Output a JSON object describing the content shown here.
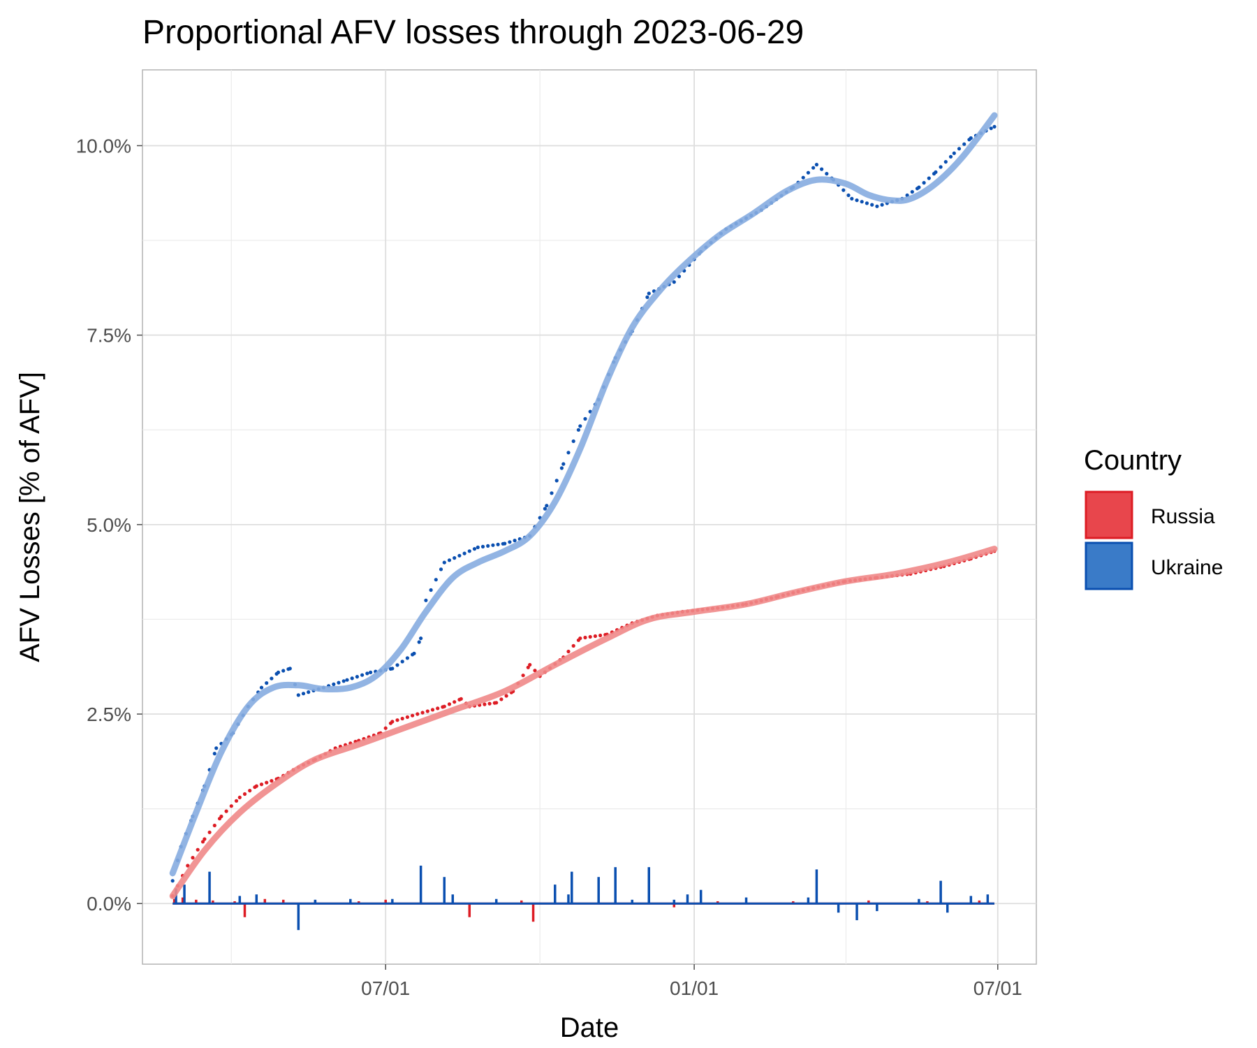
{
  "chart_data": {
    "type": "line",
    "title": "Proportional AFV losses through 2023-06-29",
    "xlabel": "Date",
    "ylabel": "AFV Losses [% of AFV]",
    "x_ticks": [
      {
        "date": "2022-07-01",
        "label": "07/01"
      },
      {
        "date": "2023-01-01",
        "label": "01/01"
      },
      {
        "date": "2023-07-01",
        "label": "07/01"
      }
    ],
    "y_ticks": [
      {
        "value": 0.0,
        "label": "0.0%"
      },
      {
        "value": 2.5,
        "label": "2.5%"
      },
      {
        "value": 5.0,
        "label": "5.0%"
      },
      {
        "value": 7.5,
        "label": "7.5%"
      },
      {
        "value": 10.0,
        "label": "10.0%"
      }
    ],
    "xlim": [
      "2022-02-06",
      "2023-07-24"
    ],
    "ylim": [
      -0.8,
      11.0
    ],
    "grid": true,
    "legend": {
      "title": "Country",
      "position": "right",
      "entries": [
        {
          "label": "Russia",
          "color": "#e8464c"
        },
        {
          "label": "Ukraine",
          "color": "#3a7bc8"
        }
      ]
    },
    "series": [
      {
        "name": "Russia",
        "color": "#dd1c24",
        "trend_color": "#f08888",
        "cumulative": [
          [
            "2022-02-24",
            0.1
          ],
          [
            "2022-03-05",
            0.5
          ],
          [
            "2022-03-15",
            0.85
          ],
          [
            "2022-03-25",
            1.15
          ],
          [
            "2022-04-05",
            1.4
          ],
          [
            "2022-04-15",
            1.55
          ],
          [
            "2022-04-28",
            1.65
          ],
          [
            "2022-05-10",
            1.8
          ],
          [
            "2022-05-20",
            1.9
          ],
          [
            "2022-06-01",
            2.05
          ],
          [
            "2022-06-15",
            2.15
          ],
          [
            "2022-06-28",
            2.25
          ],
          [
            "2022-07-05",
            2.4
          ],
          [
            "2022-07-20",
            2.5
          ],
          [
            "2022-08-05",
            2.6
          ],
          [
            "2022-08-15",
            2.7
          ],
          [
            "2022-08-20",
            2.6
          ],
          [
            "2022-09-05",
            2.65
          ],
          [
            "2022-09-15",
            2.8
          ],
          [
            "2022-09-25",
            3.15
          ],
          [
            "2022-10-01",
            3.0
          ],
          [
            "2022-10-15",
            3.25
          ],
          [
            "2022-10-25",
            3.5
          ],
          [
            "2022-11-10",
            3.55
          ],
          [
            "2022-11-25",
            3.7
          ],
          [
            "2022-12-10",
            3.8
          ],
          [
            "2022-12-25",
            3.85
          ],
          [
            "2023-01-15",
            3.9
          ],
          [
            "2023-02-01",
            3.95
          ],
          [
            "2023-02-20",
            4.05
          ],
          [
            "2023-03-10",
            4.15
          ],
          [
            "2023-04-01",
            4.25
          ],
          [
            "2023-04-20",
            4.3
          ],
          [
            "2023-05-10",
            4.35
          ],
          [
            "2023-05-30",
            4.45
          ],
          [
            "2023-06-15",
            4.55
          ],
          [
            "2023-06-29",
            4.65
          ]
        ],
        "trend": [
          [
            "2022-02-24",
            0.1
          ],
          [
            "2022-03-15",
            0.7
          ],
          [
            "2022-04-05",
            1.2
          ],
          [
            "2022-04-28",
            1.6
          ],
          [
            "2022-05-20",
            1.9
          ],
          [
            "2022-06-15",
            2.1
          ],
          [
            "2022-07-10",
            2.3
          ],
          [
            "2022-08-10",
            2.55
          ],
          [
            "2022-09-10",
            2.8
          ],
          [
            "2022-10-10",
            3.15
          ],
          [
            "2022-11-10",
            3.5
          ],
          [
            "2022-12-05",
            3.75
          ],
          [
            "2023-01-01",
            3.85
          ],
          [
            "2023-02-01",
            3.95
          ],
          [
            "2023-03-01",
            4.1
          ],
          [
            "2023-04-01",
            4.25
          ],
          [
            "2023-05-01",
            4.35
          ],
          [
            "2023-06-01",
            4.5
          ],
          [
            "2023-06-29",
            4.68
          ]
        ],
        "daily": [
          [
            "2022-02-25",
            0.06
          ],
          [
            "2022-03-02",
            0.08
          ],
          [
            "2022-03-10",
            0.05
          ],
          [
            "2022-03-20",
            0.04
          ],
          [
            "2022-04-02",
            0.03
          ],
          [
            "2022-04-08",
            -0.18
          ],
          [
            "2022-04-20",
            0.06
          ],
          [
            "2022-05-01",
            0.05
          ],
          [
            "2022-05-20",
            0.04
          ],
          [
            "2022-06-15",
            0.03
          ],
          [
            "2022-07-01",
            0.05
          ],
          [
            "2022-08-20",
            -0.18
          ],
          [
            "2022-09-20",
            0.04
          ],
          [
            "2022-09-27",
            -0.24
          ],
          [
            "2022-10-10",
            0.05
          ],
          [
            "2022-11-15",
            0.04
          ],
          [
            "2022-12-20",
            -0.05
          ],
          [
            "2023-01-15",
            0.03
          ],
          [
            "2023-03-01",
            0.03
          ],
          [
            "2023-04-15",
            0.04
          ],
          [
            "2023-05-20",
            0.03
          ],
          [
            "2023-06-20",
            0.04
          ]
        ]
      },
      {
        "name": "Ukraine",
        "color": "#0a4fb0",
        "trend_color": "#86ace0",
        "cumulative": [
          [
            "2022-02-24",
            0.3
          ],
          [
            "2022-03-01",
            0.75
          ],
          [
            "2022-03-08",
            1.15
          ],
          [
            "2022-03-15",
            1.55
          ],
          [
            "2022-03-22",
            2.05
          ],
          [
            "2022-04-01",
            2.25
          ],
          [
            "2022-04-10",
            2.6
          ],
          [
            "2022-04-18",
            2.85
          ],
          [
            "2022-04-28",
            3.05
          ],
          [
            "2022-05-05",
            3.1
          ],
          [
            "2022-05-10",
            2.75
          ],
          [
            "2022-05-25",
            2.85
          ],
          [
            "2022-06-08",
            2.95
          ],
          [
            "2022-06-22",
            3.05
          ],
          [
            "2022-07-05",
            3.1
          ],
          [
            "2022-07-18",
            3.3
          ],
          [
            "2022-07-22",
            3.5
          ],
          [
            "2022-07-25",
            4.0
          ],
          [
            "2022-08-05",
            4.5
          ],
          [
            "2022-08-25",
            4.7
          ],
          [
            "2022-09-10",
            4.75
          ],
          [
            "2022-09-25",
            4.85
          ],
          [
            "2022-10-05",
            5.25
          ],
          [
            "2022-10-15",
            5.8
          ],
          [
            "2022-10-25",
            6.3
          ],
          [
            "2022-11-05",
            6.65
          ],
          [
            "2022-11-15",
            7.2
          ],
          [
            "2022-11-25",
            7.55
          ],
          [
            "2022-12-05",
            8.05
          ],
          [
            "2022-12-20",
            8.2
          ],
          [
            "2023-01-05",
            8.6
          ],
          [
            "2023-01-20",
            8.9
          ],
          [
            "2023-02-10",
            9.15
          ],
          [
            "2023-03-01",
            9.45
          ],
          [
            "2023-03-15",
            9.75
          ],
          [
            "2023-03-25",
            9.55
          ],
          [
            "2023-04-05",
            9.3
          ],
          [
            "2023-04-20",
            9.2
          ],
          [
            "2023-05-05",
            9.3
          ],
          [
            "2023-05-15",
            9.45
          ],
          [
            "2023-05-25",
            9.65
          ],
          [
            "2023-06-05",
            9.9
          ],
          [
            "2023-06-15",
            10.1
          ],
          [
            "2023-06-29",
            10.25
          ]
        ],
        "trend": [
          [
            "2022-02-24",
            0.4
          ],
          [
            "2022-03-10",
            1.2
          ],
          [
            "2022-03-25",
            2.0
          ],
          [
            "2022-04-10",
            2.6
          ],
          [
            "2022-04-25",
            2.85
          ],
          [
            "2022-05-10",
            2.88
          ],
          [
            "2022-05-25",
            2.83
          ],
          [
            "2022-06-10",
            2.85
          ],
          [
            "2022-06-25",
            3.0
          ],
          [
            "2022-07-10",
            3.35
          ],
          [
            "2022-07-25",
            3.85
          ],
          [
            "2022-08-10",
            4.3
          ],
          [
            "2022-08-25",
            4.5
          ],
          [
            "2022-09-10",
            4.65
          ],
          [
            "2022-09-25",
            4.85
          ],
          [
            "2022-10-10",
            5.3
          ],
          [
            "2022-10-25",
            6.0
          ],
          [
            "2022-11-10",
            6.9
          ],
          [
            "2022-11-25",
            7.6
          ],
          [
            "2022-12-10",
            8.05
          ],
          [
            "2022-12-25",
            8.4
          ],
          [
            "2023-01-15",
            8.8
          ],
          [
            "2023-02-05",
            9.1
          ],
          [
            "2023-02-25",
            9.4
          ],
          [
            "2023-03-15",
            9.55
          ],
          [
            "2023-04-01",
            9.5
          ],
          [
            "2023-04-15",
            9.35
          ],
          [
            "2023-04-28",
            9.28
          ],
          [
            "2023-05-10",
            9.3
          ],
          [
            "2023-05-25",
            9.5
          ],
          [
            "2023-06-10",
            9.85
          ],
          [
            "2023-06-29",
            10.4
          ]
        ],
        "daily": [
          [
            "2022-02-26",
            0.2
          ],
          [
            "2022-03-03",
            0.25
          ],
          [
            "2022-03-18",
            0.42
          ],
          [
            "2022-04-05",
            0.1
          ],
          [
            "2022-04-15",
            0.12
          ],
          [
            "2022-05-10",
            -0.35
          ],
          [
            "2022-05-20",
            0.05
          ],
          [
            "2022-06-10",
            0.06
          ],
          [
            "2022-07-05",
            0.06
          ],
          [
            "2022-07-22",
            0.5
          ],
          [
            "2022-08-05",
            0.35
          ],
          [
            "2022-08-10",
            0.12
          ],
          [
            "2022-09-05",
            0.06
          ],
          [
            "2022-10-10",
            0.25
          ],
          [
            "2022-10-18",
            0.12
          ],
          [
            "2022-10-20",
            0.42
          ],
          [
            "2022-11-05",
            0.35
          ],
          [
            "2022-11-15",
            0.48
          ],
          [
            "2022-11-25",
            0.05
          ],
          [
            "2022-12-05",
            0.48
          ],
          [
            "2022-12-20",
            0.05
          ],
          [
            "2022-12-28",
            0.12
          ],
          [
            "2023-01-05",
            0.18
          ],
          [
            "2023-02-01",
            0.08
          ],
          [
            "2023-03-10",
            0.08
          ],
          [
            "2023-03-15",
            0.45
          ],
          [
            "2023-03-28",
            -0.12
          ],
          [
            "2023-04-08",
            -0.22
          ],
          [
            "2023-04-20",
            -0.1
          ],
          [
            "2023-05-15",
            0.06
          ],
          [
            "2023-05-28",
            0.3
          ],
          [
            "2023-06-01",
            -0.12
          ],
          [
            "2023-06-15",
            0.1
          ],
          [
            "2023-06-25",
            0.12
          ]
        ]
      }
    ]
  }
}
